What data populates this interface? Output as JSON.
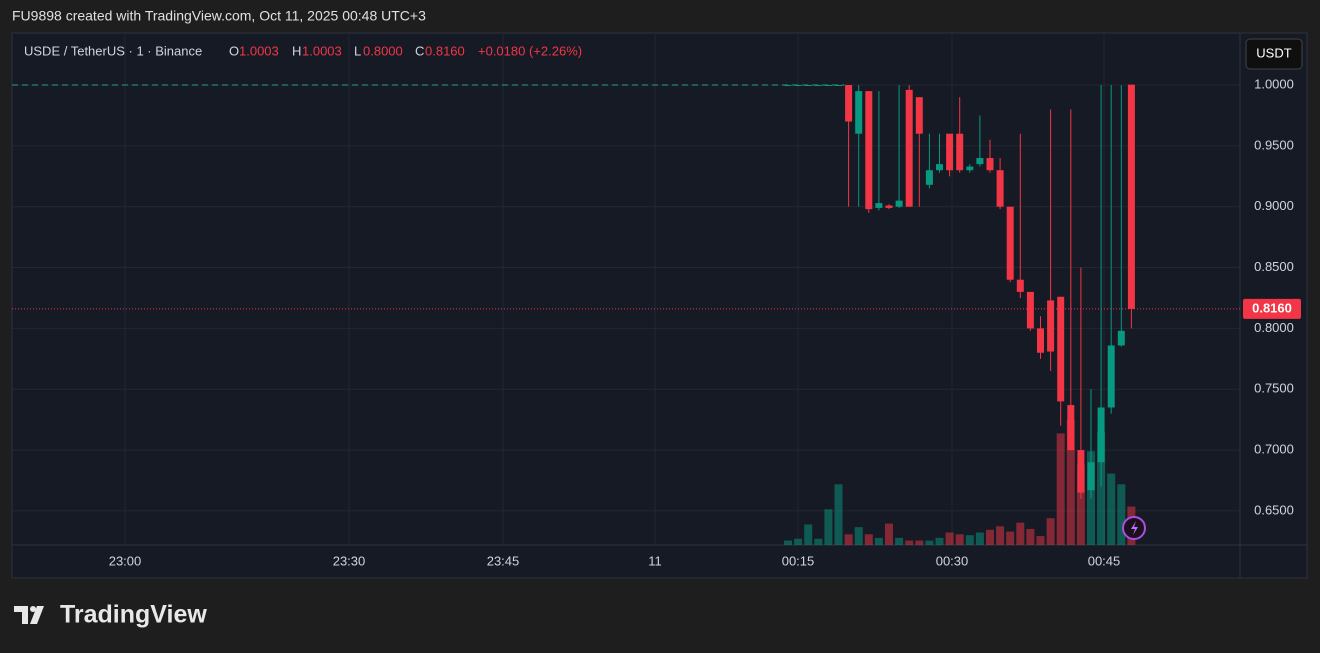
{
  "header": "FU9898 created with TradingView.com, Oct 11, 2025 00:48 UTC+3",
  "legend": {
    "symbol": "USDE / TetherUS · 1 · Binance",
    "o_label": "O",
    "o": "1.0003",
    "h_label": "H",
    "h": "1.0003",
    "l_label": "L",
    "l": "0.8000",
    "c_label": "C",
    "c": "0.8160",
    "change": "+0.0180 (+2.26%)"
  },
  "currency": "USDT",
  "brand": "TradingView",
  "chart_data": {
    "type": "candlestick",
    "x": [
      "00:14",
      "00:15",
      "00:16",
      "00:17",
      "00:18",
      "00:19",
      "00:20",
      "00:21",
      "00:22",
      "00:23",
      "00:24",
      "00:25",
      "00:26",
      "00:27",
      "00:28",
      "00:29",
      "00:30",
      "00:31",
      "00:32",
      "00:33",
      "00:34",
      "00:35",
      "00:36",
      "00:37",
      "00:38",
      "00:39",
      "00:40",
      "00:41",
      "00:42",
      "00:43",
      "00:44",
      "00:45",
      "00:46",
      "00:47",
      "00:48"
    ],
    "open": [
      1,
      1,
      1,
      1,
      1,
      1,
      1.0,
      0.96,
      0.995,
      0.899,
      0.901,
      0.9,
      0.996,
      0.99,
      0.918,
      0.93,
      0.96,
      0.96,
      0.93,
      0.935,
      0.94,
      0.93,
      0.9,
      0.84,
      0.83,
      0.8,
      0.823,
      0.826,
      0.737,
      0.7,
      0.667,
      0.69,
      0.735,
      0.786,
      1.0003
    ],
    "high": [
      1,
      1,
      1,
      1,
      1,
      1,
      1.0,
      1.0,
      0.995,
      0.995,
      0.902,
      1.0,
      1.0,
      0.99,
      0.96,
      0.96,
      0.96,
      0.99,
      0.935,
      0.975,
      0.955,
      0.94,
      0.9,
      0.96,
      0.83,
      0.81,
      0.98,
      0.826,
      0.98,
      0.85,
      0.75,
      1.0,
      1.0,
      1.0,
      1.0003
    ],
    "low": [
      1,
      1,
      1,
      1,
      1,
      1,
      0.9,
      0.9,
      0.895,
      0.897,
      0.898,
      0.899,
      0.9,
      0.9,
      0.915,
      0.928,
      0.925,
      0.928,
      0.928,
      0.933,
      0.928,
      0.898,
      0.838,
      0.825,
      0.798,
      0.775,
      0.765,
      0.72,
      0.7,
      0.66,
      0.66,
      0.67,
      0.73,
      0.785,
      0.8
    ],
    "close": [
      1,
      1,
      1,
      1,
      1,
      1,
      0.97,
      0.995,
      0.898,
      0.903,
      0.899,
      0.905,
      0.9,
      0.96,
      0.93,
      0.935,
      0.93,
      0.93,
      0.933,
      0.94,
      0.93,
      0.9,
      0.84,
      0.83,
      0.8,
      0.78,
      0.781,
      0.74,
      0.7,
      0.665,
      0.69,
      0.735,
      0.786,
      0.798,
      0.816
    ],
    "volume": [
      5,
      7,
      23,
      7,
      40,
      68,
      12,
      20,
      12,
      8,
      24,
      8,
      5,
      5,
      5,
      8,
      14,
      12,
      11,
      14,
      17,
      21,
      15,
      25,
      18,
      10,
      30,
      125,
      140,
      90,
      105,
      127,
      80,
      68,
      43
    ],
    "up_color": "#089981",
    "down_color": "#f23645",
    "ylim": [
      0.622,
      1.037
    ],
    "yticks": [
      {
        "value": 0.65,
        "label": "0.6500"
      },
      {
        "value": 0.7,
        "label": "0.7000"
      },
      {
        "value": 0.75,
        "label": "0.7500"
      },
      {
        "value": 0.8,
        "label": "0.8000"
      },
      {
        "value": 0.85,
        "label": "0.8500"
      },
      {
        "value": 0.9,
        "label": "0.9000"
      },
      {
        "value": 0.95,
        "label": "0.9500"
      },
      {
        "value": 1,
        "label": "1.0000"
      }
    ],
    "xticks": [
      "23:00",
      "23:30",
      "23:45",
      "11",
      "00:15",
      "00:30",
      "00:45"
    ],
    "last_price": {
      "value": 0.816,
      "label": "0.8160"
    },
    "grid": true
  }
}
